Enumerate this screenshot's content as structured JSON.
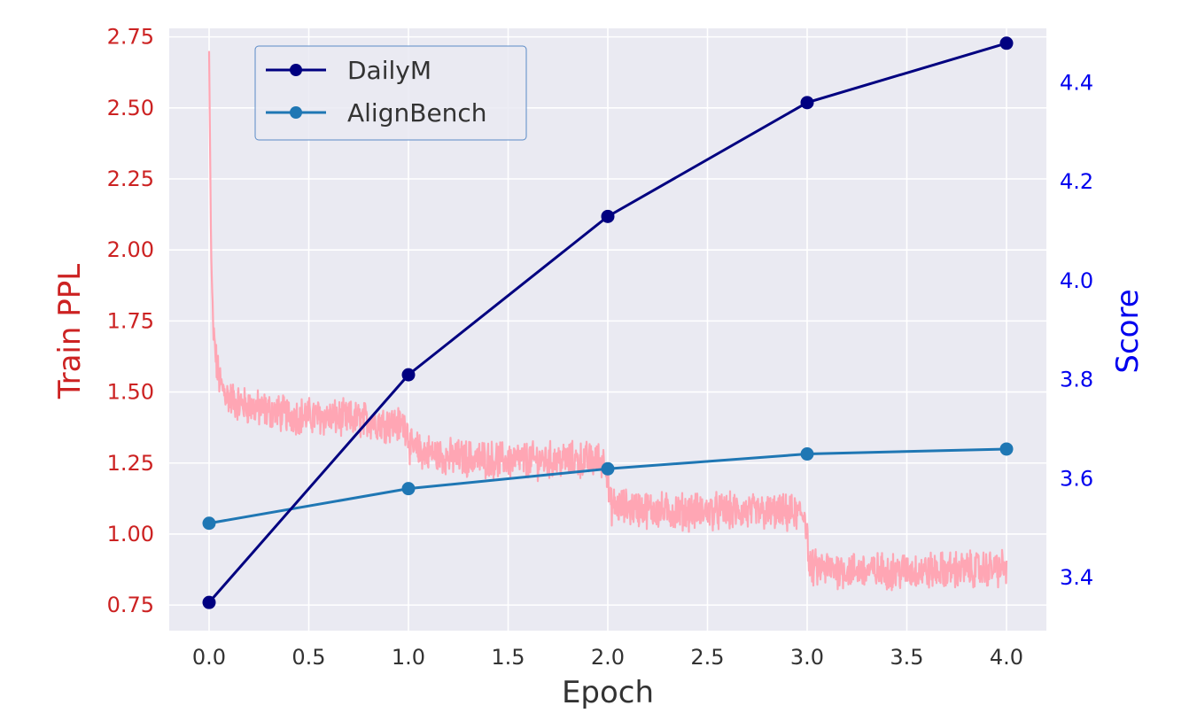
{
  "chart_data": {
    "type": "line",
    "xlabel": "Epoch",
    "ylabel_left": "Train PPL",
    "ylabel_right": "Score",
    "xlim": [
      -0.2,
      4.2
    ],
    "ylim_left": [
      0.66,
      2.78
    ],
    "ylim_right": [
      3.293,
      4.51
    ],
    "x_ticks": [
      0.0,
      0.5,
      1.0,
      1.5,
      2.0,
      2.5,
      3.0,
      3.5,
      4.0
    ],
    "x_tick_labels": [
      "0.0",
      "0.5",
      "1.0",
      "1.5",
      "2.0",
      "2.5",
      "3.0",
      "3.5",
      "4.0"
    ],
    "y_left_ticks": [
      0.75,
      1.0,
      1.25,
      1.5,
      1.75,
      2.0,
      2.25,
      2.5,
      2.75
    ],
    "y_left_tick_labels": [
      "0.75",
      "1.00",
      "1.25",
      "1.50",
      "1.75",
      "2.00",
      "2.25",
      "2.50",
      "2.75"
    ],
    "y_right_ticks": [
      3.4,
      3.6,
      3.8,
      4.0,
      4.2,
      4.4
    ],
    "y_right_tick_labels": [
      "3.4",
      "3.6",
      "3.8",
      "4.0",
      "4.2",
      "4.4"
    ],
    "grid": true,
    "legend_position": "top-left",
    "series": [
      {
        "name": "DailyM",
        "axis": "right",
        "color": "#000080",
        "marker": "circle",
        "x": [
          0,
          1,
          2,
          3,
          4
        ],
        "values": [
          3.35,
          3.81,
          4.13,
          4.36,
          4.48
        ]
      },
      {
        "name": "AlignBench",
        "axis": "right",
        "color": "#1f77b4",
        "marker": "circle",
        "x": [
          0,
          1,
          2,
          3,
          4
        ],
        "values": [
          3.51,
          3.58,
          3.62,
          3.65,
          3.66
        ]
      },
      {
        "name": "",
        "axis": "left",
        "color": "#ffa6b4",
        "marker": "none",
        "x": [
          0.0,
          0.01,
          0.02,
          0.04,
          0.06,
          0.1,
          0.15,
          0.25,
          0.4,
          0.6,
          0.8,
          0.99,
          1.0,
          1.01,
          1.2,
          1.5,
          1.8,
          1.99,
          2.0,
          2.01,
          2.3,
          2.6,
          2.99,
          3.0,
          3.01,
          3.3,
          3.6,
          4.0
        ],
        "values": [
          2.7,
          2.0,
          1.72,
          1.58,
          1.52,
          1.48,
          1.46,
          1.44,
          1.42,
          1.41,
          1.4,
          1.38,
          1.35,
          1.3,
          1.27,
          1.26,
          1.26,
          1.26,
          1.2,
          1.1,
          1.08,
          1.08,
          1.07,
          1.0,
          0.88,
          0.87,
          0.87,
          0.88
        ]
      }
    ]
  },
  "colors": {
    "plot_background": "#eaeaf2",
    "grid": "#ffffff",
    "left_axis": "#cc2222",
    "right_axis": "#0000ee"
  }
}
